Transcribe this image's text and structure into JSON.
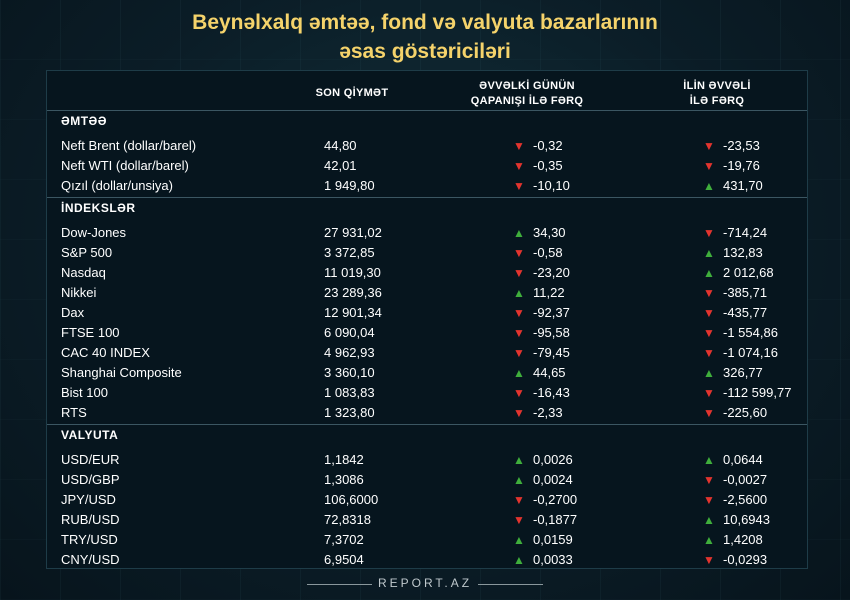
{
  "title_line1": "Beynəlxalq əmtəə, fond və valyuta  bazarlarının",
  "title_line2": "əsas göstəriciləri",
  "headers": {
    "last": "SON QİYMƏT",
    "d1_line1": "ƏVVƏLKİ GÜNÜN",
    "d1_line2": "QAPANIŞI İLƏ FƏRQ",
    "d2_line1": "İLİN ƏVVƏLİ",
    "d2_line2": "İLƏ FƏRQ"
  },
  "colors": {
    "up": "#3fae3c",
    "down": "#e3342f",
    "title": "#f5d36b"
  },
  "sections": [
    {
      "title": "ƏMTƏƏ",
      "rows": [
        {
          "name": "Neft Brent (dollar/barel)",
          "last": "44,80",
          "d1": "-0,32",
          "d1_dir": "down",
          "d2": "-23,53",
          "d2_dir": "down"
        },
        {
          "name": "Neft WTI (dollar/barel)",
          "last": "42,01",
          "d1": "-0,35",
          "d1_dir": "down",
          "d2": "-19,76",
          "d2_dir": "down"
        },
        {
          "name": "Qızıl (dollar/unsiya)",
          "last": "1 949,80",
          "d1": "-10,10",
          "d1_dir": "down",
          "d2": "431,70",
          "d2_dir": "up"
        }
      ]
    },
    {
      "title": "İNDEKSLƏR",
      "rows": [
        {
          "name": "Dow-Jones",
          "last": "27 931,02",
          "d1": "34,30",
          "d1_dir": "up",
          "d2": "-714,24",
          "d2_dir": "down"
        },
        {
          "name": "S&P 500",
          "last": "3 372,85",
          "d1": "-0,58",
          "d1_dir": "down",
          "d2": "132,83",
          "d2_dir": "up"
        },
        {
          "name": "Nasdaq",
          "last": "11 019,30",
          "d1": "-23,20",
          "d1_dir": "down",
          "d2": "2 012,68",
          "d2_dir": "up"
        },
        {
          "name": "Nikkei",
          "last": "23 289,36",
          "d1": "11,22",
          "d1_dir": "up",
          "d2": "-385,71",
          "d2_dir": "down"
        },
        {
          "name": "Dax",
          "last": "12 901,34",
          "d1": "-92,37",
          "d1_dir": "down",
          "d2": "-435,77",
          "d2_dir": "down"
        },
        {
          "name": "FTSE 100",
          "last": "6 090,04",
          "d1": "-95,58",
          "d1_dir": "down",
          "d2": "-1 554,86",
          "d2_dir": "down"
        },
        {
          "name": "CAC 40 INDEX",
          "last": "4 962,93",
          "d1": "-79,45",
          "d1_dir": "down",
          "d2": "-1 074,16",
          "d2_dir": "down"
        },
        {
          "name": "Shanghai Composite",
          "last": "3 360,10",
          "d1": "44,65",
          "d1_dir": "up",
          "d2": "326,77",
          "d2_dir": "up"
        },
        {
          "name": "Bist 100",
          "last": "1 083,83",
          "d1": "-16,43",
          "d1_dir": "down",
          "d2": "-112 599,77",
          "d2_dir": "down"
        },
        {
          "name": "RTS",
          "last": "1 323,80",
          "d1": "-2,33",
          "d1_dir": "down",
          "d2": "-225,60",
          "d2_dir": "down"
        }
      ]
    },
    {
      "title": "VALYUTA",
      "rows": [
        {
          "name": "USD/EUR",
          "last": "1,1842",
          "d1": "0,0026",
          "d1_dir": "up",
          "d2": "0,0644",
          "d2_dir": "up"
        },
        {
          "name": "USD/GBP",
          "last": "1,3086",
          "d1": "0,0024",
          "d1_dir": "up",
          "d2": "-0,0027",
          "d2_dir": "down"
        },
        {
          "name": "JPY/USD",
          "last": "106,6000",
          "d1": "-0,2700",
          "d1_dir": "down",
          "d2": "-2,5600",
          "d2_dir": "down"
        },
        {
          "name": "RUB/USD",
          "last": "72,8318",
          "d1": "-0,1877",
          "d1_dir": "down",
          "d2": "10,6943",
          "d2_dir": "up"
        },
        {
          "name": "TRY/USD",
          "last": "7,3702",
          "d1": "0,0159",
          "d1_dir": "up",
          "d2": "1,4208",
          "d2_dir": "up"
        },
        {
          "name": "CNY/USD",
          "last": "6,9504",
          "d1": "0,0033",
          "d1_dir": "up",
          "d2": "-0,0293",
          "d2_dir": "down"
        }
      ]
    }
  ],
  "footer": "REPORT.AZ"
}
